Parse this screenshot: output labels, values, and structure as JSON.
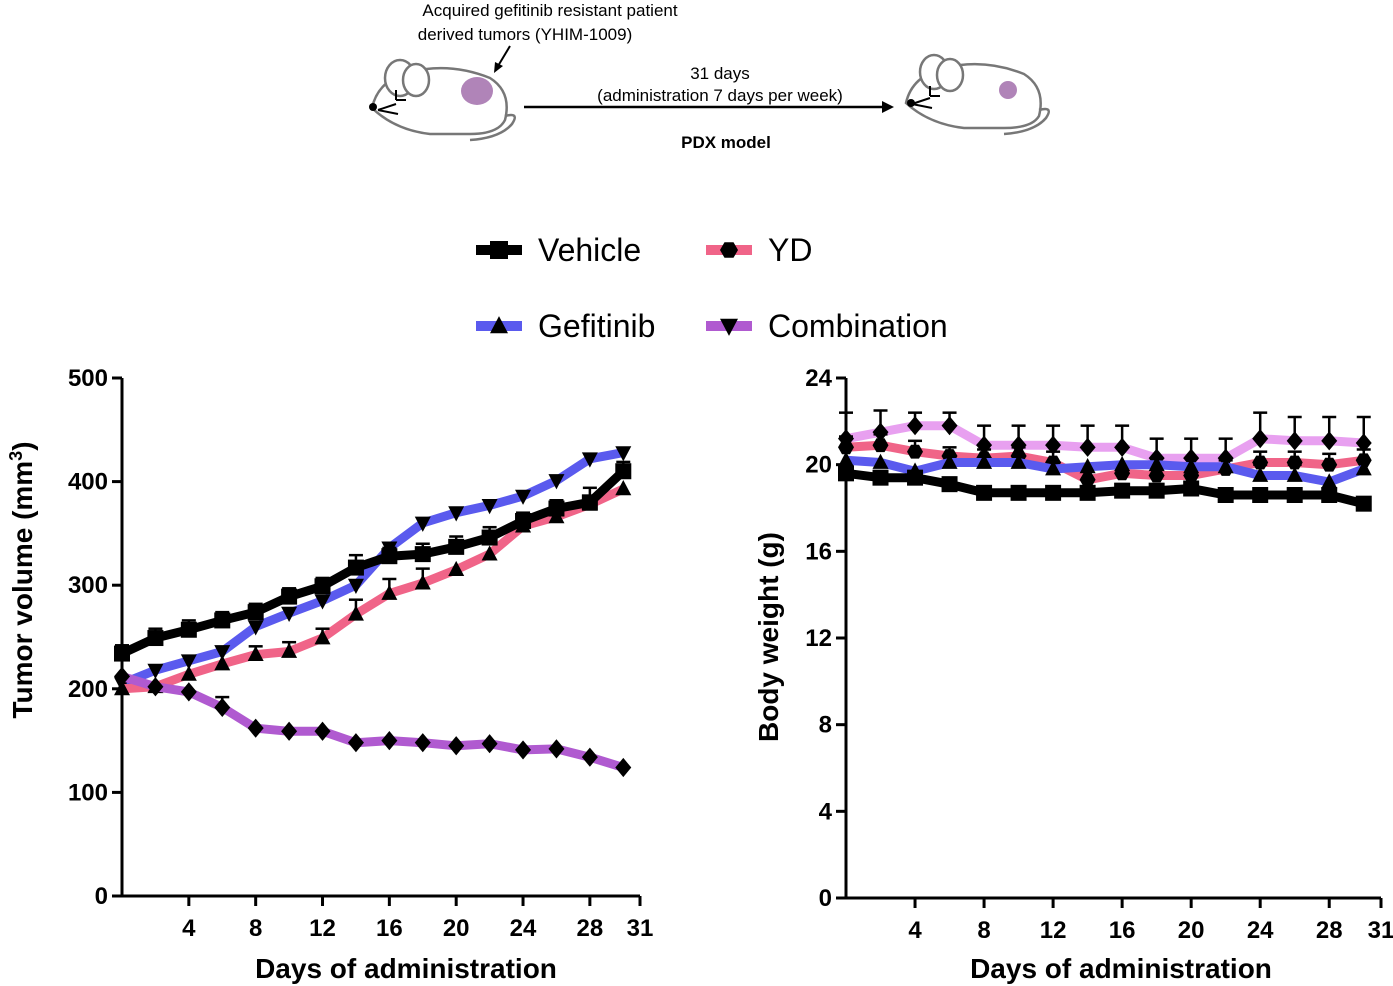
{
  "schematic": {
    "tumor_label_line1": "Acquired gefitinib resistant patient",
    "tumor_label_line2": "derived tumors (YHIM-1009)",
    "arrow_label_line1": "31 days",
    "arrow_label_line2": "(administration 7 days per week)",
    "model_label": "PDX model",
    "mouse_color": "#777777",
    "tumor_color": "#b084b8"
  },
  "legend": [
    {
      "name": "Vehicle",
      "color": "#000000",
      "marker": "square"
    },
    {
      "name": "YD",
      "color": "#f06488",
      "marker": "hexagon"
    },
    {
      "name": "Gefitinib",
      "color": "#5a5aee",
      "marker": "triangle-up"
    },
    {
      "name": "Combination",
      "color": "#b05ad0",
      "marker": "triangle-down"
    }
  ],
  "chart_data": [
    {
      "type": "line",
      "title": "",
      "xlabel": "Days of administration",
      "ylabel": "Tumor volume  (mm",
      "ylabel_sup": "3",
      "ylabel_close": ")",
      "xlim": [
        0,
        31
      ],
      "ylim": [
        0,
        500
      ],
      "xticks": [
        4,
        8,
        12,
        16,
        20,
        24,
        28,
        31
      ],
      "xtick_labels": [
        "4",
        "8",
        "12",
        "16",
        "20",
        "24",
        "28",
        "31"
      ],
      "yticks": [
        0,
        100,
        200,
        300,
        400,
        500
      ],
      "ytick_labels": [
        "0",
        "100",
        "200",
        "300",
        "400",
        "500"
      ],
      "x": [
        0,
        2,
        4,
        6,
        8,
        10,
        12,
        14,
        16,
        18,
        20,
        22,
        24,
        26,
        28,
        30
      ],
      "series": [
        {
          "name": "Gefitinib",
          "color": "#5a5aee",
          "marker": "triangle-down",
          "values": [
            205,
            218,
            227,
            236,
            260,
            273,
            285,
            300,
            336,
            360,
            370,
            377,
            386,
            401,
            422,
            428
          ],
          "errors": [
            0,
            0,
            0,
            0,
            0,
            0,
            0,
            0,
            0,
            0,
            0,
            0,
            0,
            0,
            0,
            0
          ]
        },
        {
          "name": "YD",
          "color": "#f06488",
          "marker": "triangle-up",
          "values": [
            200,
            202,
            214,
            224,
            233,
            236,
            249,
            272,
            292,
            302,
            315,
            330,
            357,
            366,
            378,
            393
          ],
          "errors": [
            0,
            0,
            0,
            0,
            8,
            9,
            9,
            14,
            14,
            14,
            0,
            0,
            0,
            0,
            8,
            0
          ]
        },
        {
          "name": "Vehicle",
          "color": "#000000",
          "marker": "square",
          "values": [
            234,
            249,
            257,
            266,
            274,
            289,
            299,
            317,
            328,
            330,
            337,
            346,
            362,
            374,
            380,
            410
          ],
          "errors": [
            8,
            9,
            9,
            8,
            8,
            8,
            8,
            12,
            8,
            10,
            10,
            10,
            8,
            8,
            14,
            9
          ]
        },
        {
          "name": "Combination",
          "color": "#b05ad0",
          "marker": "diamond",
          "values": [
            212,
            202,
            197,
            182,
            162,
            159,
            159,
            148,
            150,
            148,
            145,
            147,
            141,
            142,
            134,
            124
          ],
          "errors": [
            0,
            0,
            0,
            10,
            0,
            0,
            0,
            0,
            0,
            0,
            0,
            0,
            0,
            0,
            0,
            0
          ]
        }
      ]
    },
    {
      "type": "line",
      "title": "",
      "xlabel": "Days of administration",
      "ylabel": "Body weight  (g)",
      "xlim": [
        0,
        31
      ],
      "ylim": [
        0,
        24
      ],
      "xticks": [
        4,
        8,
        12,
        16,
        20,
        24,
        28,
        31
      ],
      "xtick_labels": [
        "4",
        "8",
        "12",
        "16",
        "20",
        "24",
        "28",
        "31"
      ],
      "yticks": [
        0,
        4,
        8,
        12,
        16,
        20,
        24
      ],
      "ytick_labels": [
        "0",
        "4",
        "8",
        "12",
        "16",
        "20",
        "24"
      ],
      "x": [
        0,
        2,
        4,
        6,
        8,
        10,
        12,
        14,
        16,
        18,
        20,
        22,
        24,
        26,
        28,
        30
      ],
      "series": [
        {
          "name": "Combination",
          "color": "#e8a0f0",
          "marker": "diamond",
          "values": [
            21.2,
            21.5,
            21.8,
            21.8,
            20.9,
            20.9,
            20.9,
            20.8,
            20.8,
            20.3,
            20.3,
            20.3,
            21.2,
            21.1,
            21.1,
            21.0
          ],
          "errors": [
            1.2,
            1.0,
            0.6,
            0.6,
            0.9,
            0.9,
            0.9,
            1.0,
            1.0,
            0.9,
            0.9,
            0.9,
            1.2,
            1.1,
            1.1,
            1.2
          ]
        },
        {
          "name": "YD",
          "color": "#f06488",
          "marker": "hexagon",
          "values": [
            20.8,
            20.9,
            20.6,
            20.4,
            20.3,
            20.4,
            20.1,
            19.3,
            19.6,
            19.5,
            19.5,
            19.8,
            20.1,
            20.1,
            20.0,
            20.2
          ],
          "errors": [
            0.5,
            0.5,
            0.5,
            0.4,
            0.4,
            0.4,
            0.5,
            0.5,
            0.4,
            0.4,
            0.4,
            0.4,
            0.5,
            0.5,
            0.5,
            0.5
          ]
        },
        {
          "name": "Gefitinib",
          "color": "#5a5aee",
          "marker": "triangle-up",
          "values": [
            20.2,
            20.1,
            19.7,
            20.1,
            20.1,
            20.1,
            19.8,
            19.9,
            20.0,
            20.0,
            19.9,
            19.9,
            19.5,
            19.5,
            19.2,
            19.8
          ],
          "errors": [
            0,
            0,
            0,
            0,
            0,
            0,
            0,
            0,
            0,
            0,
            0,
            0,
            0.5,
            0.5,
            0,
            0
          ]
        },
        {
          "name": "Vehicle",
          "color": "#000000",
          "marker": "square",
          "values": [
            19.6,
            19.4,
            19.4,
            19.1,
            18.7,
            18.7,
            18.7,
            18.7,
            18.8,
            18.8,
            18.9,
            18.6,
            18.6,
            18.6,
            18.6,
            18.2
          ],
          "errors": [
            0.3,
            0.3,
            0.3,
            0.3,
            0.3,
            0.3,
            0.3,
            0.3,
            0.3,
            0.3,
            0.3,
            0.3,
            0.3,
            0.3,
            0.3,
            0.2
          ]
        }
      ]
    }
  ]
}
